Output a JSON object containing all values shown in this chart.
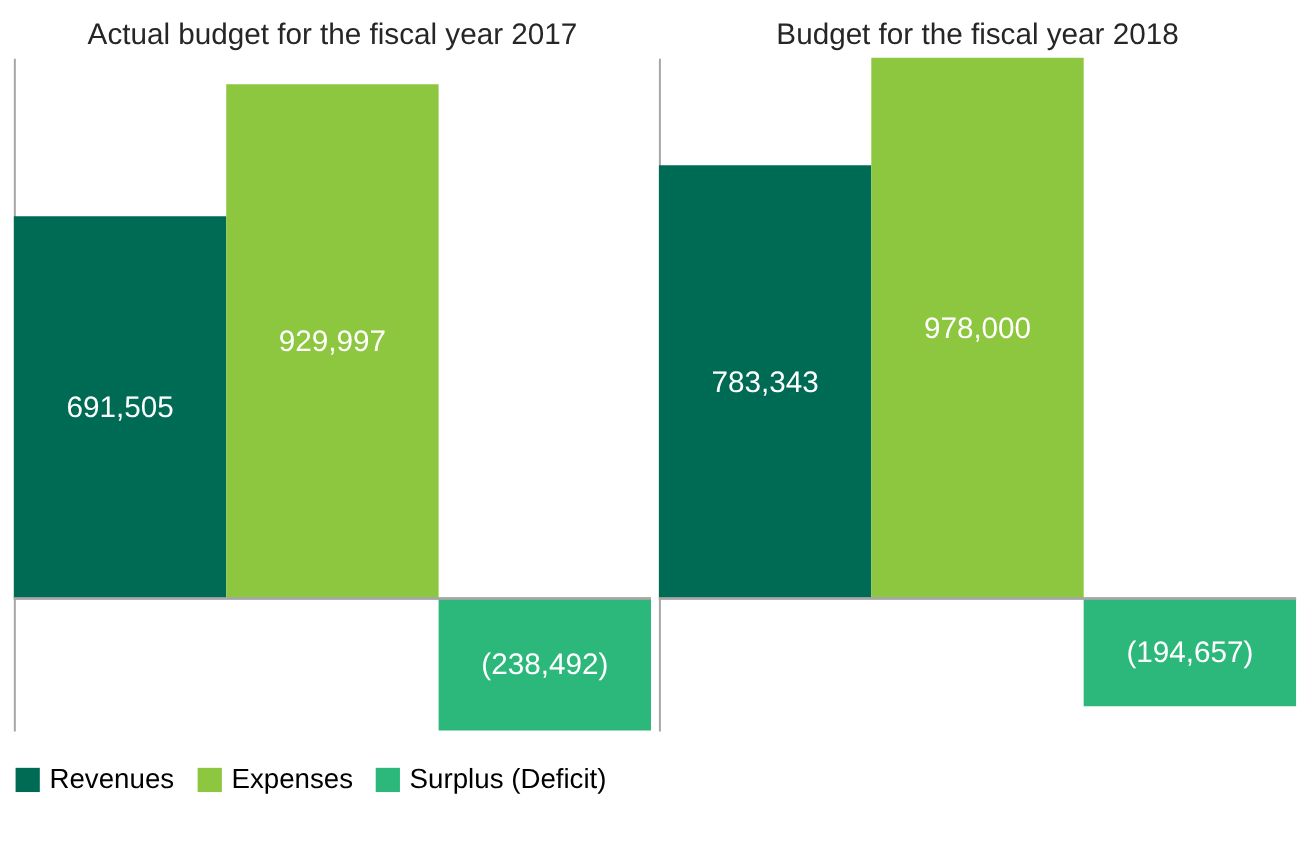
{
  "chart_data": [
    {
      "type": "bar",
      "title": "Actual budget for the fiscal year 2017",
      "categories": [
        null
      ],
      "tick_labels": false,
      "legend": "bottom",
      "grid": false,
      "series": [
        {
          "name": "Revenues",
          "color": "#006b54",
          "values": [
            691505
          ],
          "value_labels": [
            "691,505"
          ]
        },
        {
          "name": "Expenses",
          "color": "#8dc63f",
          "values": [
            929997
          ],
          "value_labels": [
            "929,997"
          ]
        },
        {
          "name": "Surplus (Deficit)",
          "color": "#2db87b",
          "values": [
            -238492
          ],
          "value_labels": [
            "(238,492)"
          ]
        }
      ]
    },
    {
      "type": "bar",
      "title": "Budget for the fiscal year 2018",
      "categories": [
        null
      ],
      "tick_labels": false,
      "legend": "bottom",
      "grid": false,
      "series": [
        {
          "name": "Revenues",
          "color": "#006b54",
          "values": [
            783343
          ],
          "value_labels": [
            "783,343"
          ]
        },
        {
          "name": "Expenses",
          "color": "#8dc63f",
          "values": [
            978000
          ],
          "value_labels": [
            "978,000"
          ]
        },
        {
          "name": "Surplus (Deficit)",
          "color": "#2db87b",
          "values": [
            -194657
          ],
          "value_labels": [
            "(194,657)"
          ]
        }
      ]
    }
  ]
}
